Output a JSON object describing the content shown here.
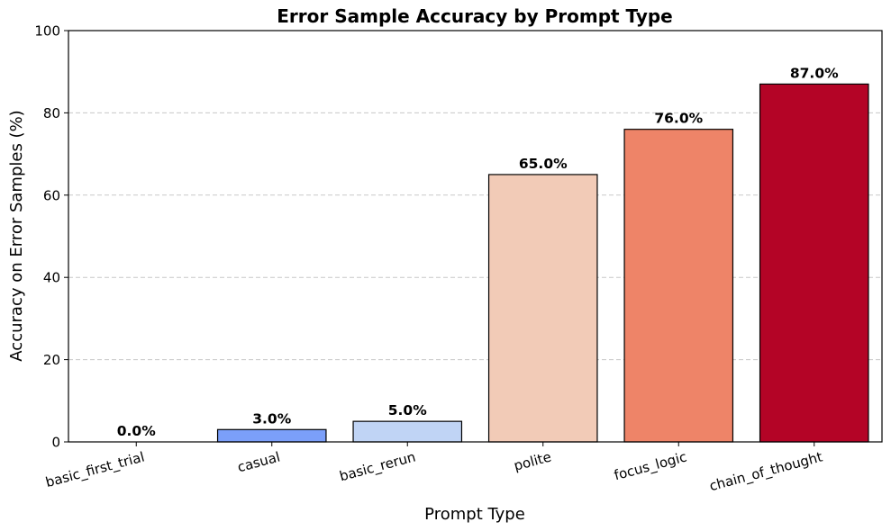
{
  "chart_data": {
    "type": "bar",
    "title": "Error Sample Accuracy by Prompt Type",
    "xlabel": "Prompt Type",
    "ylabel": "Accuracy on Error Samples (%)",
    "categories": [
      "basic_first_trial",
      "casual",
      "basic_rerun",
      "polite",
      "focus_logic",
      "chain_of_thought"
    ],
    "values": [
      0.0,
      3.0,
      5.0,
      65.0,
      76.0,
      87.0
    ],
    "value_labels": [
      "0.0%",
      "3.0%",
      "5.0%",
      "65.0%",
      "76.0%",
      "87.0%"
    ],
    "colors": [
      "#3b4cc0",
      "#7b9ff9",
      "#c0d4f5",
      "#f2cbb7",
      "#ee8468",
      "#b40426"
    ],
    "ylim": [
      0,
      100
    ],
    "yticks": [
      0,
      20,
      40,
      60,
      80,
      100
    ],
    "ytick_labels": [
      "0",
      "20",
      "40",
      "60",
      "80",
      "100"
    ],
    "grid": "y-dashed",
    "legend": "none"
  }
}
